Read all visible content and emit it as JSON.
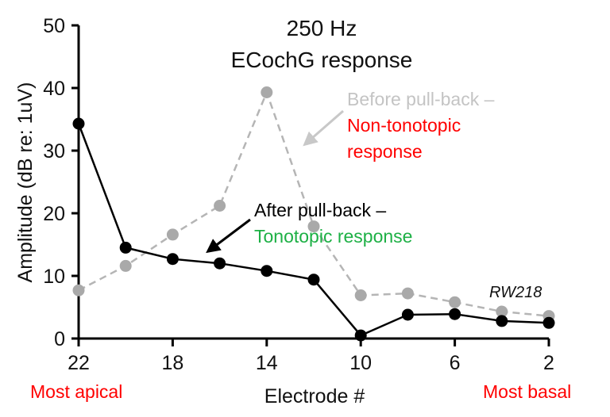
{
  "chart_data": {
    "type": "line",
    "title": "250 Hz",
    "subtitle": "ECochG response",
    "xlabel": "Electrode #",
    "ylabel": "Amplitude (dB re: 1uV)",
    "xlim": [
      22,
      2
    ],
    "x_reversed": true,
    "ylim": [
      0,
      50
    ],
    "xticks": [
      "22",
      "18",
      "14",
      "10",
      "6",
      "2"
    ],
    "yticks": [
      "0",
      "10",
      "20",
      "30",
      "40",
      "50"
    ],
    "grid": false,
    "series": [
      {
        "name": "Before pull-back",
        "style": "dashed",
        "color": "#b5b5b5",
        "marker_color": "#a9a9a9",
        "x": [
          22,
          20,
          18,
          16,
          14,
          12,
          10,
          8,
          6,
          4,
          2
        ],
        "y": [
          7.7,
          11.6,
          16.6,
          21.2,
          39.3,
          17.9,
          6.9,
          7.2,
          5.8,
          4.3,
          3.6
        ]
      },
      {
        "name": "After pull-back",
        "style": "solid",
        "color": "#000000",
        "marker_color": "#000000",
        "x": [
          22,
          20,
          18,
          16,
          14,
          12,
          10,
          8,
          6,
          4,
          2
        ],
        "y": [
          34.3,
          14.5,
          12.7,
          12.0,
          10.8,
          9.4,
          0.5,
          3.8,
          3.9,
          2.8,
          2.5
        ]
      }
    ],
    "annotations": {
      "before_line1": "Before pull-back –",
      "before_line2": "Non-tonotopic",
      "before_line3": "response",
      "after_line1": "After pull-back –",
      "after_line2": "Tonotopic response",
      "subject": "RW218",
      "most_apical": "Most apical",
      "most_basal": "Most basal"
    },
    "colors": {
      "red": "#ff0000",
      "green": "#1db045",
      "gray_text": "#c4c4c4",
      "gray_arrow": "#c8c8c8"
    }
  }
}
